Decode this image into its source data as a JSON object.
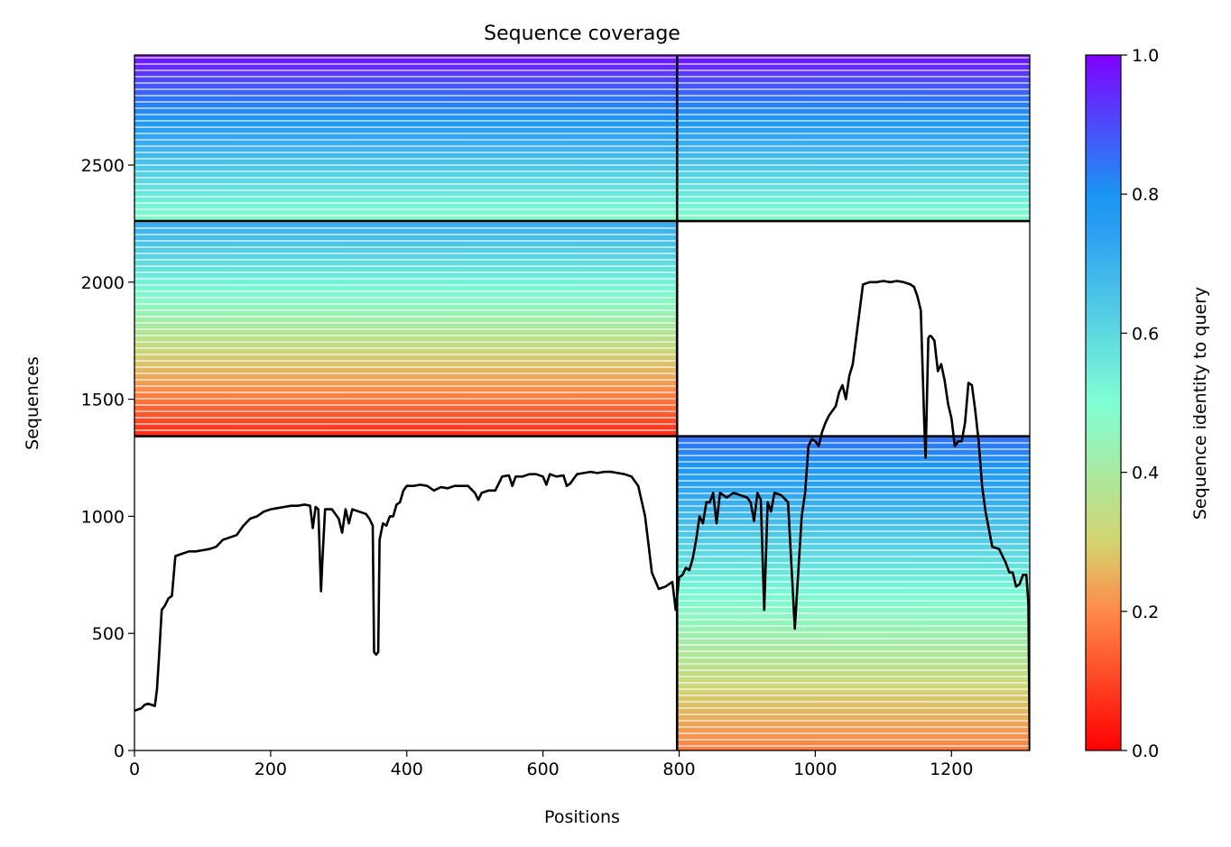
{
  "chart_data": {
    "type": "heatmap",
    "title": "Sequence coverage",
    "xlabel": "Positions",
    "ylabel": "Sequences",
    "xlim": [
      0,
      1315
    ],
    "ylim": [
      0,
      2970
    ],
    "xticks": [
      0,
      200,
      400,
      600,
      800,
      1000,
      1200
    ],
    "yticks": [
      0,
      500,
      1000,
      1500,
      2000,
      2500
    ],
    "colorbar": {
      "label": "Sequence identity to query",
      "range": [
        0.0,
        1.0
      ],
      "ticks": [
        0.0,
        0.2,
        0.4,
        0.6,
        0.8,
        1.0
      ],
      "colormap": "rainbow_r",
      "colors": [
        "#ff0000",
        "#ff8a48",
        "#d3d46f",
        "#7fffd4",
        "#2b9ef3",
        "#1996f3",
        "#8000ff"
      ],
      "color_stops": [
        0.0,
        0.2,
        0.3,
        0.5,
        0.75,
        0.8,
        1.0
      ]
    },
    "chain_boundaries": {
      "x_divider": 797,
      "y_dividers": [
        1342,
        2261
      ]
    },
    "coverage_blocks": [
      {
        "name": "chain-1-paired",
        "x": [
          0,
          797
        ],
        "y": [
          2261,
          2970
        ],
        "identity": [
          0.48,
          0.98
        ]
      },
      {
        "name": "chain-2-paired",
        "x": [
          797,
          1315
        ],
        "y": [
          2261,
          2970
        ],
        "identity": [
          0.45,
          0.98
        ]
      },
      {
        "name": "chain-1-unpaired",
        "x": [
          0,
          797
        ],
        "y": [
          1342,
          2261
        ],
        "identity": [
          0.06,
          0.72
        ]
      },
      {
        "name": "chain-2-unpaired",
        "x": [
          797,
          1315
        ],
        "y": [
          0,
          1342
        ],
        "identity": [
          0.18,
          0.85
        ]
      }
    ],
    "series": [
      {
        "type": "line",
        "color": "#000000",
        "x": [
          0,
          10,
          15,
          20,
          25,
          30,
          33,
          36,
          40,
          45,
          50,
          55,
          60,
          70,
          80,
          90,
          100,
          110,
          120,
          130,
          140,
          150,
          160,
          170,
          180,
          190,
          200,
          210,
          220,
          230,
          240,
          250,
          258,
          262,
          266,
          270,
          274,
          276,
          280,
          290,
          300,
          305,
          310,
          315,
          320,
          330,
          340,
          345,
          350,
          352,
          355,
          358,
          360,
          365,
          370,
          375,
          380,
          385,
          390,
          395,
          400,
          410,
          420,
          430,
          440,
          450,
          460,
          470,
          480,
          490,
          500,
          505,
          510,
          520,
          530,
          540,
          550,
          555,
          560,
          570,
          580,
          590,
          600,
          605,
          610,
          620,
          630,
          635,
          640,
          650,
          660,
          670,
          680,
          690,
          700,
          710,
          720,
          730,
          740,
          750,
          760,
          770,
          780,
          790,
          795,
          800,
          805,
          810,
          815,
          820,
          825,
          830,
          835,
          840,
          845,
          850,
          855,
          860,
          870,
          880,
          890,
          900,
          905,
          910,
          915,
          920,
          925,
          930,
          935,
          940,
          950,
          960,
          970,
          980,
          985,
          990,
          995,
          1000,
          1005,
          1010,
          1015,
          1020,
          1025,
          1030,
          1035,
          1040,
          1045,
          1050,
          1055,
          1060,
          1070,
          1080,
          1090,
          1100,
          1110,
          1120,
          1130,
          1140,
          1145,
          1150,
          1155,
          1160,
          1162,
          1164,
          1166,
          1168,
          1170,
          1175,
          1180,
          1185,
          1190,
          1195,
          1200,
          1205,
          1210,
          1215,
          1220,
          1225,
          1230,
          1235,
          1240,
          1245,
          1250,
          1260,
          1270,
          1275,
          1280,
          1285,
          1290,
          1295,
          1300,
          1305,
          1310,
          1313,
          1315
        ],
        "y": [
          170,
          180,
          195,
          200,
          195,
          190,
          260,
          400,
          600,
          620,
          650,
          660,
          830,
          840,
          850,
          850,
          855,
          860,
          870,
          900,
          910,
          920,
          960,
          990,
          1000,
          1020,
          1030,
          1035,
          1040,
          1045,
          1045,
          1050,
          1045,
          950,
          1040,
          1030,
          680,
          810,
          1030,
          1030,
          990,
          930,
          1030,
          970,
          1030,
          1020,
          1010,
          990,
          960,
          420,
          410,
          420,
          900,
          970,
          960,
          1000,
          1000,
          1050,
          1060,
          1110,
          1130,
          1130,
          1135,
          1130,
          1110,
          1125,
          1120,
          1130,
          1130,
          1130,
          1100,
          1070,
          1100,
          1110,
          1110,
          1170,
          1175,
          1130,
          1170,
          1170,
          1180,
          1180,
          1170,
          1135,
          1180,
          1170,
          1175,
          1130,
          1140,
          1180,
          1185,
          1190,
          1185,
          1190,
          1190,
          1185,
          1180,
          1170,
          1130,
          1000,
          760,
          690,
          700,
          720,
          600,
          740,
          750,
          780,
          770,
          820,
          900,
          1000,
          970,
          1060,
          1060,
          1100,
          970,
          1100,
          1080,
          1100,
          1090,
          1080,
          1060,
          980,
          1100,
          1070,
          600,
          1060,
          1020,
          1100,
          1090,
          1060,
          520,
          1000,
          1100,
          1300,
          1330,
          1320,
          1300,
          1360,
          1400,
          1430,
          1450,
          1470,
          1530,
          1560,
          1500,
          1600,
          1650,
          1760,
          1990,
          2000,
          2000,
          2005,
          2000,
          2005,
          2000,
          1990,
          1980,
          1940,
          1880,
          1400,
          1250,
          1500,
          1760,
          1770,
          1770,
          1750,
          1620,
          1650,
          1580,
          1480,
          1420,
          1300,
          1320,
          1320,
          1400,
          1570,
          1560,
          1450,
          1320,
          1130,
          1020,
          870,
          860,
          830,
          800,
          760,
          760,
          700,
          710,
          750,
          750,
          630,
          0
        ]
      }
    ]
  }
}
